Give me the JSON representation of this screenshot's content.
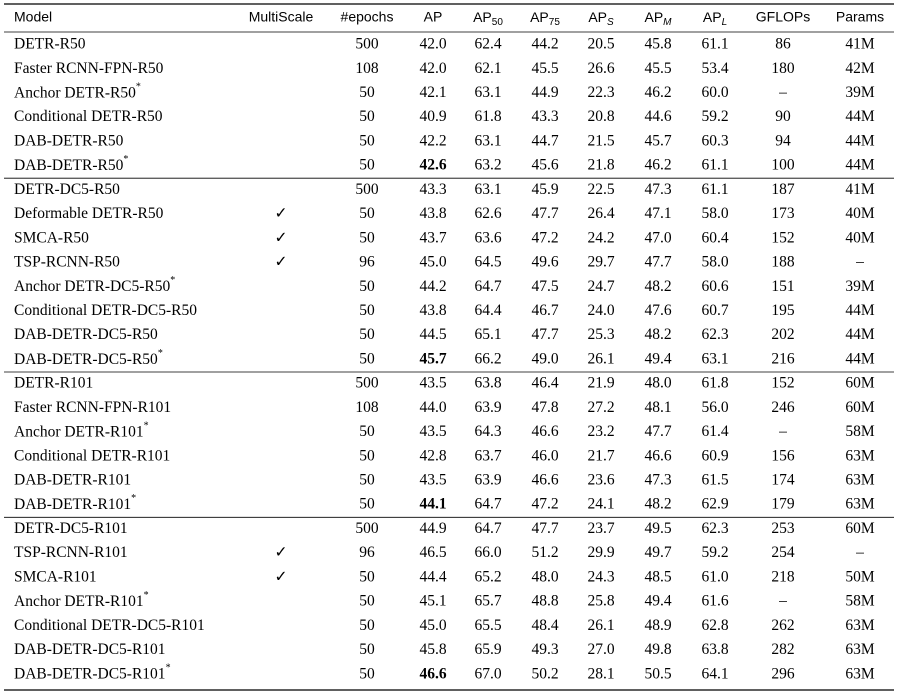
{
  "table": {
    "header": [
      "Model",
      "MultiScale",
      "#epochs",
      "AP",
      {
        "text": "AP",
        "sub": "50"
      },
      {
        "text": "AP",
        "sub": "75"
      },
      {
        "text": "AP",
        "sub": "S",
        "italic": true
      },
      {
        "text": "AP",
        "sub": "M",
        "italic": true
      },
      {
        "text": "AP",
        "sub": "L",
        "italic": true
      },
      "GFLOPs",
      "Params"
    ],
    "groups": [
      {
        "rows": [
          {
            "cells": [
              "DETR-R50",
              null,
              "500",
              "42.0",
              "62.4",
              "44.2",
              "20.5",
              "45.8",
              "61.1",
              "86",
              "41M"
            ]
          },
          {
            "cells": [
              "Faster RCNN-FPN-R50",
              null,
              "108",
              "42.0",
              "62.1",
              "45.5",
              "26.6",
              "45.5",
              "53.4",
              "180",
              "42M"
            ]
          },
          {
            "cells": [
              "Anchor DETR-R50",
              null,
              "50",
              "42.1",
              "63.1",
              "44.9",
              "22.3",
              "46.2",
              "60.0",
              "–",
              "39M"
            ],
            "sup": "*"
          },
          {
            "cells": [
              "Conditional DETR-R50",
              null,
              "50",
              "40.9",
              "61.8",
              "43.3",
              "20.8",
              "44.6",
              "59.2",
              "90",
              "44M"
            ]
          },
          {
            "cells": [
              "DAB-DETR-R50",
              null,
              "50",
              "42.2",
              "63.1",
              "44.7",
              "21.5",
              "45.7",
              "60.3",
              "94",
              "44M"
            ]
          },
          {
            "cells": [
              "DAB-DETR-R50",
              null,
              "50",
              "42.6",
              "63.2",
              "45.6",
              "21.8",
              "46.2",
              "61.1",
              "100",
              "44M"
            ],
            "sup": "*",
            "bold": 3
          }
        ]
      },
      {
        "rows": [
          {
            "cells": [
              "DETR-DC5-R50",
              null,
              "500",
              "43.3",
              "63.1",
              "45.9",
              "22.5",
              "47.3",
              "61.1",
              "187",
              "41M"
            ]
          },
          {
            "cells": [
              "Deformable DETR-R50",
              "✓",
              "50",
              "43.8",
              "62.6",
              "47.7",
              "26.4",
              "47.1",
              "58.0",
              "173",
              "40M"
            ]
          },
          {
            "cells": [
              "SMCA-R50",
              "✓",
              "50",
              "43.7",
              "63.6",
              "47.2",
              "24.2",
              "47.0",
              "60.4",
              "152",
              "40M"
            ]
          },
          {
            "cells": [
              "TSP-RCNN-R50",
              "✓",
              "96",
              "45.0",
              "64.5",
              "49.6",
              "29.7",
              "47.7",
              "58.0",
              "188",
              "–"
            ]
          },
          {
            "cells": [
              "Anchor DETR-DC5-R50",
              null,
              "50",
              "44.2",
              "64.7",
              "47.5",
              "24.7",
              "48.2",
              "60.6",
              "151",
              "39M"
            ],
            "sup": "*"
          },
          {
            "cells": [
              "Conditional DETR-DC5-R50",
              null,
              "50",
              "43.8",
              "64.4",
              "46.7",
              "24.0",
              "47.6",
              "60.7",
              "195",
              "44M"
            ]
          },
          {
            "cells": [
              "DAB-DETR-DC5-R50",
              null,
              "50",
              "44.5",
              "65.1",
              "47.7",
              "25.3",
              "48.2",
              "62.3",
              "202",
              "44M"
            ]
          },
          {
            "cells": [
              "DAB-DETR-DC5-R50",
              null,
              "50",
              "45.7",
              "66.2",
              "49.0",
              "26.1",
              "49.4",
              "63.1",
              "216",
              "44M"
            ],
            "sup": "*",
            "bold": 3
          }
        ]
      },
      {
        "rows": [
          {
            "cells": [
              "DETR-R101",
              null,
              "500",
              "43.5",
              "63.8",
              "46.4",
              "21.9",
              "48.0",
              "61.8",
              "152",
              "60M"
            ]
          },
          {
            "cells": [
              "Faster RCNN-FPN-R101",
              null,
              "108",
              "44.0",
              "63.9",
              "47.8",
              "27.2",
              "48.1",
              "56.0",
              "246",
              "60M"
            ]
          },
          {
            "cells": [
              "Anchor DETR-R101",
              null,
              "50",
              "43.5",
              "64.3",
              "46.6",
              "23.2",
              "47.7",
              "61.4",
              "–",
              "58M"
            ],
            "sup": "*"
          },
          {
            "cells": [
              "Conditional DETR-R101",
              null,
              "50",
              "42.8",
              "63.7",
              "46.0",
              "21.7",
              "46.6",
              "60.9",
              "156",
              "63M"
            ]
          },
          {
            "cells": [
              "DAB-DETR-R101",
              null,
              "50",
              "43.5",
              "63.9",
              "46.6",
              "23.6",
              "47.3",
              "61.5",
              "174",
              "63M"
            ]
          },
          {
            "cells": [
              "DAB-DETR-R101",
              null,
              "50",
              "44.1",
              "64.7",
              "47.2",
              "24.1",
              "48.2",
              "62.9",
              "179",
              "63M"
            ],
            "sup": "*",
            "bold": 3
          }
        ]
      },
      {
        "rows": [
          {
            "cells": [
              "DETR-DC5-R101",
              null,
              "500",
              "44.9",
              "64.7",
              "47.7",
              "23.7",
              "49.5",
              "62.3",
              "253",
              "60M"
            ]
          },
          {
            "cells": [
              "TSP-RCNN-R101",
              "✓",
              "96",
              "46.5",
              "66.0",
              "51.2",
              "29.9",
              "49.7",
              "59.2",
              "254",
              "–"
            ]
          },
          {
            "cells": [
              "SMCA-R101",
              "✓",
              "50",
              "44.4",
              "65.2",
              "48.0",
              "24.3",
              "48.5",
              "61.0",
              "218",
              "50M"
            ]
          },
          {
            "cells": [
              "Anchor DETR-R101",
              null,
              "50",
              "45.1",
              "65.7",
              "48.8",
              "25.8",
              "49.4",
              "61.6",
              "–",
              "58M"
            ],
            "sup": "*"
          },
          {
            "cells": [
              "Conditional DETR-DC5-R101",
              null,
              "50",
              "45.0",
              "65.5",
              "48.4",
              "26.1",
              "48.9",
              "62.8",
              "262",
              "63M"
            ]
          },
          {
            "cells": [
              "DAB-DETR-DC5-R101",
              null,
              "50",
              "45.8",
              "65.9",
              "49.3",
              "27.0",
              "49.8",
              "63.8",
              "282",
              "63M"
            ]
          },
          {
            "cells": [
              "DAB-DETR-DC5-R101",
              null,
              "50",
              "46.6",
              "67.0",
              "50.2",
              "28.1",
              "50.5",
              "64.1",
              "296",
              "63M"
            ],
            "sup": "*",
            "bold": 3
          }
        ]
      }
    ]
  }
}
